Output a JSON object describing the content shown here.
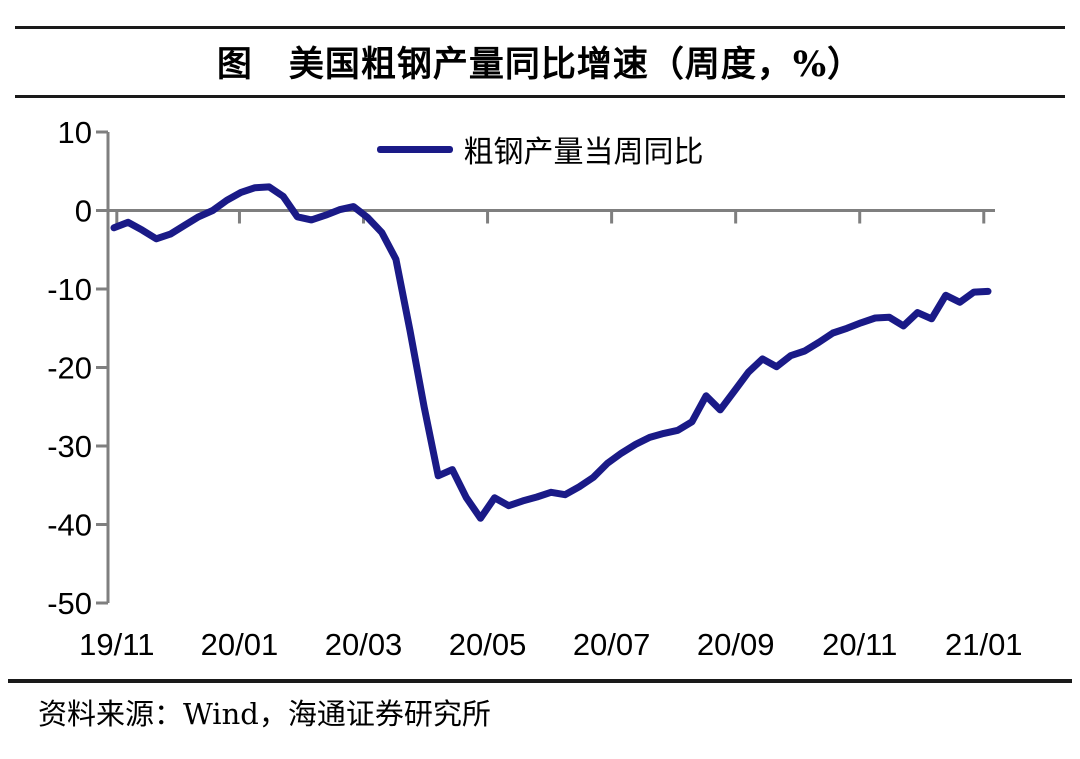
{
  "page": {
    "background": "#ffffff"
  },
  "header": {
    "title": "图　美国粗钢产量同比增速（周度，%）"
  },
  "legend": {
    "label": "粗钢产量当周同比",
    "line_color": "#1a1a87"
  },
  "footer": {
    "source": "资料来源：Wind，海通证券研究所"
  },
  "chart_data": {
    "type": "line",
    "title": "图 美国粗钢产量同比增速（周度，%）",
    "x_unit": "week",
    "ylim": [
      -50,
      10
    ],
    "y_ticks": [
      10,
      0,
      -10,
      -20,
      -30,
      -40,
      -50
    ],
    "x_ticks": [
      {
        "label": "19/11",
        "pos": 0.2
      },
      {
        "label": "20/01",
        "pos": 8.9
      },
      {
        "label": "20/03",
        "pos": 17.7
      },
      {
        "label": "20/05",
        "pos": 26.5
      },
      {
        "label": "20/07",
        "pos": 35.3
      },
      {
        "label": "20/09",
        "pos": 44.1
      },
      {
        "label": "20/11",
        "pos": 52.9
      },
      {
        "label": "21/01",
        "pos": 61.7
      }
    ],
    "grid": "zero-line-only",
    "legend_position": "top-center",
    "axis_color": "#7f7f7f",
    "series": [
      {
        "name": "粗钢产量当周同比",
        "color": "#1a1a87",
        "values": [
          -2.2,
          -1.5,
          -2.5,
          -3.6,
          -3.0,
          -1.9,
          -0.8,
          0.0,
          1.3,
          2.3,
          2.9,
          3.0,
          1.8,
          -0.8,
          -1.2,
          -0.6,
          0.1,
          0.5,
          -0.9,
          -2.8,
          -6.2,
          -15.3,
          -25.0,
          -33.8,
          -33.0,
          -36.6,
          -39.2,
          -36.6,
          -37.6,
          -37.0,
          -36.5,
          -35.9,
          -36.2,
          -35.2,
          -34.0,
          -32.2,
          -30.9,
          -29.8,
          -28.9,
          -28.4,
          -28.0,
          -26.9,
          -23.6,
          -25.4,
          -23.0,
          -20.6,
          -18.9,
          -19.9,
          -18.5,
          -17.9,
          -16.8,
          -15.6,
          -15.0,
          -14.3,
          -13.7,
          -13.6,
          -14.7,
          -13.0,
          -13.8,
          -10.8,
          -11.7,
          -10.4,
          -10.3
        ]
      }
    ]
  }
}
